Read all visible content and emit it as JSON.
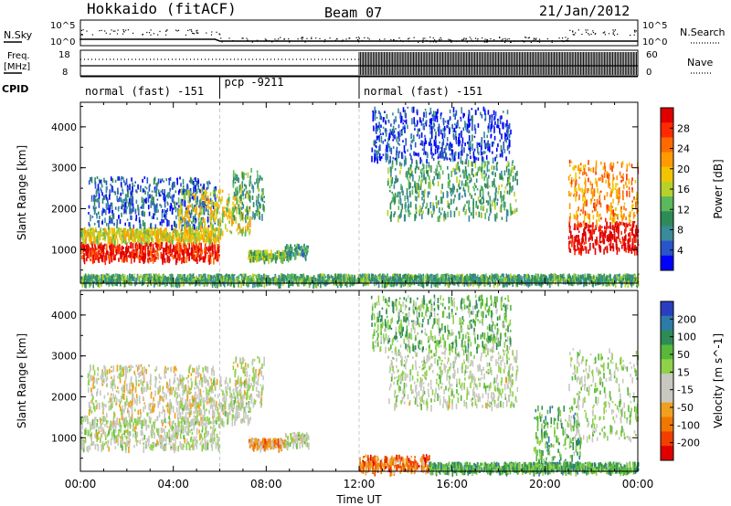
{
  "header": {
    "radar": "Hokkaido (fitACF)",
    "beam": "Beam 07",
    "date": "21/Jan/2012"
  },
  "top_strips": {
    "nsky_label": "N.Sky",
    "nsearch_label": "N.Search",
    "nsky_ticks": [
      "10^5",
      "10^0"
    ],
    "nsearch_ticks": [
      "10^5",
      "10^0"
    ],
    "freq_label": "Freq.",
    "freq_unit": "[MHz]",
    "freq_ticks": [
      "18",
      "8"
    ],
    "nave_label": "Nave",
    "nave_ticks": [
      "60",
      "0"
    ],
    "cpid_label": "CPID",
    "cpid_segments": [
      {
        "label": "normal (fast) -151",
        "start_hour": 0,
        "end_hour": 6
      },
      {
        "label": "pcp -9211",
        "start_hour": 6,
        "end_hour": 12
      },
      {
        "label": "normal (fast) -151",
        "start_hour": 12,
        "end_hour": 24
      }
    ]
  },
  "chart_data": [
    {
      "type": "heatmap",
      "name": "power",
      "ylabel": "Slant Range [km]",
      "xlim_hours": [
        0,
        24
      ],
      "ylim_km": [
        180,
        4600
      ],
      "ytick_labels": [
        "1000",
        "2000",
        "3000",
        "4000"
      ],
      "colorbar_label": "Power [dB]",
      "colorbar_ticks": [
        "28",
        "24",
        "20",
        "16",
        "12",
        "8",
        "4"
      ],
      "colors": [
        "#0000ff",
        "#2a55c8",
        "#3a8a9a",
        "#2e8b57",
        "#5cb85c",
        "#b7d12a",
        "#f2c400",
        "#ff9a00",
        "#ff6a00",
        "#ff2a00",
        "#e00000"
      ],
      "regions": [
        {
          "h0": 0.0,
          "h1": 6.0,
          "r0": 780,
          "r1": 1200,
          "level": 0.92
        },
        {
          "h0": 0.0,
          "h1": 6.0,
          "r0": 1250,
          "r1": 1550,
          "level": 0.55
        },
        {
          "h0": 0.3,
          "h1": 5.8,
          "r0": 1600,
          "r1": 2800,
          "level": 0.18
        },
        {
          "h0": 4.2,
          "h1": 7.3,
          "r0": 1400,
          "r1": 2500,
          "level": 0.55
        },
        {
          "h0": 6.5,
          "h1": 7.9,
          "r0": 1800,
          "r1": 3000,
          "level": 0.35
        },
        {
          "h0": 7.2,
          "h1": 8.8,
          "r0": 800,
          "r1": 1000,
          "level": 0.45
        },
        {
          "h0": 8.8,
          "h1": 9.8,
          "r0": 850,
          "r1": 1150,
          "level": 0.3
        },
        {
          "h0": 0.0,
          "h1": 24.0,
          "r0": 220,
          "r1": 420,
          "level": 0.35
        },
        {
          "h0": 13.2,
          "h1": 18.8,
          "r0": 1800,
          "r1": 3200,
          "level": 0.35
        },
        {
          "h0": 12.5,
          "h1": 18.5,
          "r0": 3200,
          "r1": 4500,
          "level": 0.12
        },
        {
          "h0": 21.0,
          "h1": 24.0,
          "r0": 1000,
          "r1": 1700,
          "level": 0.98
        },
        {
          "h0": 21.0,
          "h1": 24.0,
          "r0": 1700,
          "r1": 3200,
          "level": 0.7
        }
      ]
    },
    {
      "type": "heatmap",
      "name": "velocity",
      "ylabel": "Slant Range [km]",
      "xlabel": "Time UT",
      "xlim_hours": [
        0,
        24
      ],
      "ylim_km": [
        180,
        4600
      ],
      "xtick_labels": [
        "00:00",
        "04:00",
        "08:00",
        "12:00",
        "16:00",
        "20:00",
        "00:00"
      ],
      "ytick_labels": [
        "1000",
        "2000",
        "3000",
        "4000"
      ],
      "colorbar_label": "Velocity [m s^-1]",
      "colorbar_ticks": [
        "200",
        "100",
        "50",
        "15",
        "-15",
        "-50",
        "-100",
        "-200"
      ],
      "colors": [
        "#2a3fbf",
        "#2e7aa8",
        "#2e8b57",
        "#58b83a",
        "#8fd24a",
        "#c8c8c0",
        "#c8c8c0",
        "#f0a020",
        "#f07800",
        "#f04000",
        "#e00000"
      ],
      "regions": [
        {
          "h0": 0.0,
          "h1": 6.0,
          "r0": 780,
          "r1": 1550,
          "level": 0.5
        },
        {
          "h0": 0.3,
          "h1": 5.8,
          "r0": 1600,
          "r1": 2800,
          "level": 0.55
        },
        {
          "h0": 4.2,
          "h1": 7.3,
          "r0": 1400,
          "r1": 2500,
          "level": 0.5
        },
        {
          "h0": 6.5,
          "h1": 7.9,
          "r0": 1800,
          "r1": 3000,
          "level": 0.52
        },
        {
          "h0": 7.2,
          "h1": 8.8,
          "r0": 800,
          "r1": 1000,
          "level": 0.72
        },
        {
          "h0": 8.8,
          "h1": 9.8,
          "r0": 850,
          "r1": 1150,
          "level": 0.5
        },
        {
          "h0": 12.0,
          "h1": 15.0,
          "r0": 220,
          "r1": 600,
          "level": 0.78
        },
        {
          "h0": 15.0,
          "h1": 24.0,
          "r0": 220,
          "r1": 420,
          "level": 0.3
        },
        {
          "h0": 13.2,
          "h1": 18.8,
          "r0": 1800,
          "r1": 3200,
          "level": 0.48
        },
        {
          "h0": 12.5,
          "h1": 18.5,
          "r0": 3200,
          "r1": 4500,
          "level": 0.35
        },
        {
          "h0": 19.5,
          "h1": 21.5,
          "r0": 250,
          "r1": 1800,
          "level": 0.3
        },
        {
          "h0": 21.0,
          "h1": 24.0,
          "r0": 1000,
          "r1": 3200,
          "level": 0.45
        }
      ]
    }
  ]
}
